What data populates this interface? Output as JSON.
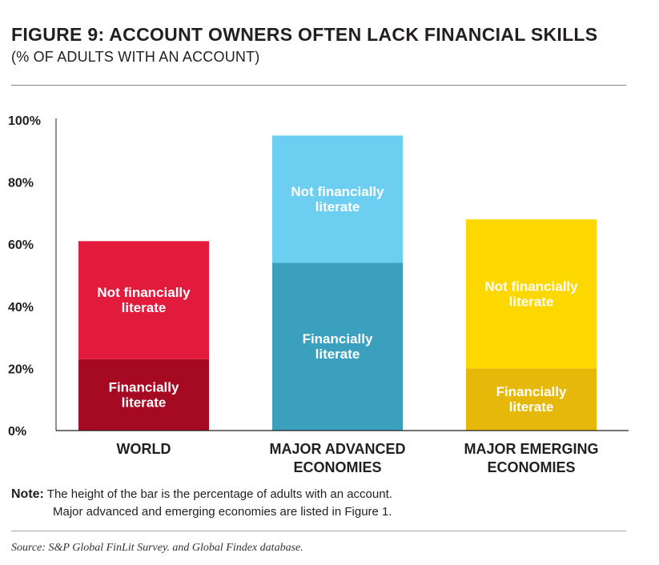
{
  "header": {
    "title": "FIGURE 9: ACCOUNT OWNERS OFTEN LACK FINANCIAL SKILLS",
    "subtitle": "(% OF ADULTS WITH AN ACCOUNT)"
  },
  "chart_data": {
    "type": "bar",
    "stacked": true,
    "categories": [
      "WORLD",
      "MAJOR ADVANCED ECONOMIES",
      "MAJOR EMERGING ECONOMIES"
    ],
    "category_lines": [
      [
        "WORLD"
      ],
      [
        "MAJOR ADVANCED",
        "ECONOMIES"
      ],
      [
        "MAJOR EMERGING",
        "ECONOMIES"
      ]
    ],
    "series": [
      {
        "segment_label": [
          "Financially",
          "literate"
        ],
        "values": [
          23,
          54,
          20
        ],
        "colors": [
          "#a50a22",
          "#3aa0bd",
          "#e6b80a"
        ]
      },
      {
        "segment_label": [
          "Not financially",
          "literate"
        ],
        "values": [
          38,
          41,
          48
        ],
        "colors": [
          "#e21a3c",
          "#6ccff2",
          "#fcd700"
        ]
      }
    ],
    "totals": [
      61,
      95,
      68
    ],
    "ylim": [
      0,
      100
    ],
    "yticks": [
      0,
      20,
      40,
      60,
      80,
      100
    ],
    "ytick_labels": [
      "0%",
      "20%",
      "40%",
      "60%",
      "80%",
      "100%"
    ],
    "grid": false
  },
  "note": {
    "label": "Note:",
    "line1": "The height of the bar is the percentage of adults with an account.",
    "line2": "Major advanced and emerging economies are listed in Figure 1."
  },
  "source": "Source: S&P Global FinLit Survey. and Global Findex database."
}
